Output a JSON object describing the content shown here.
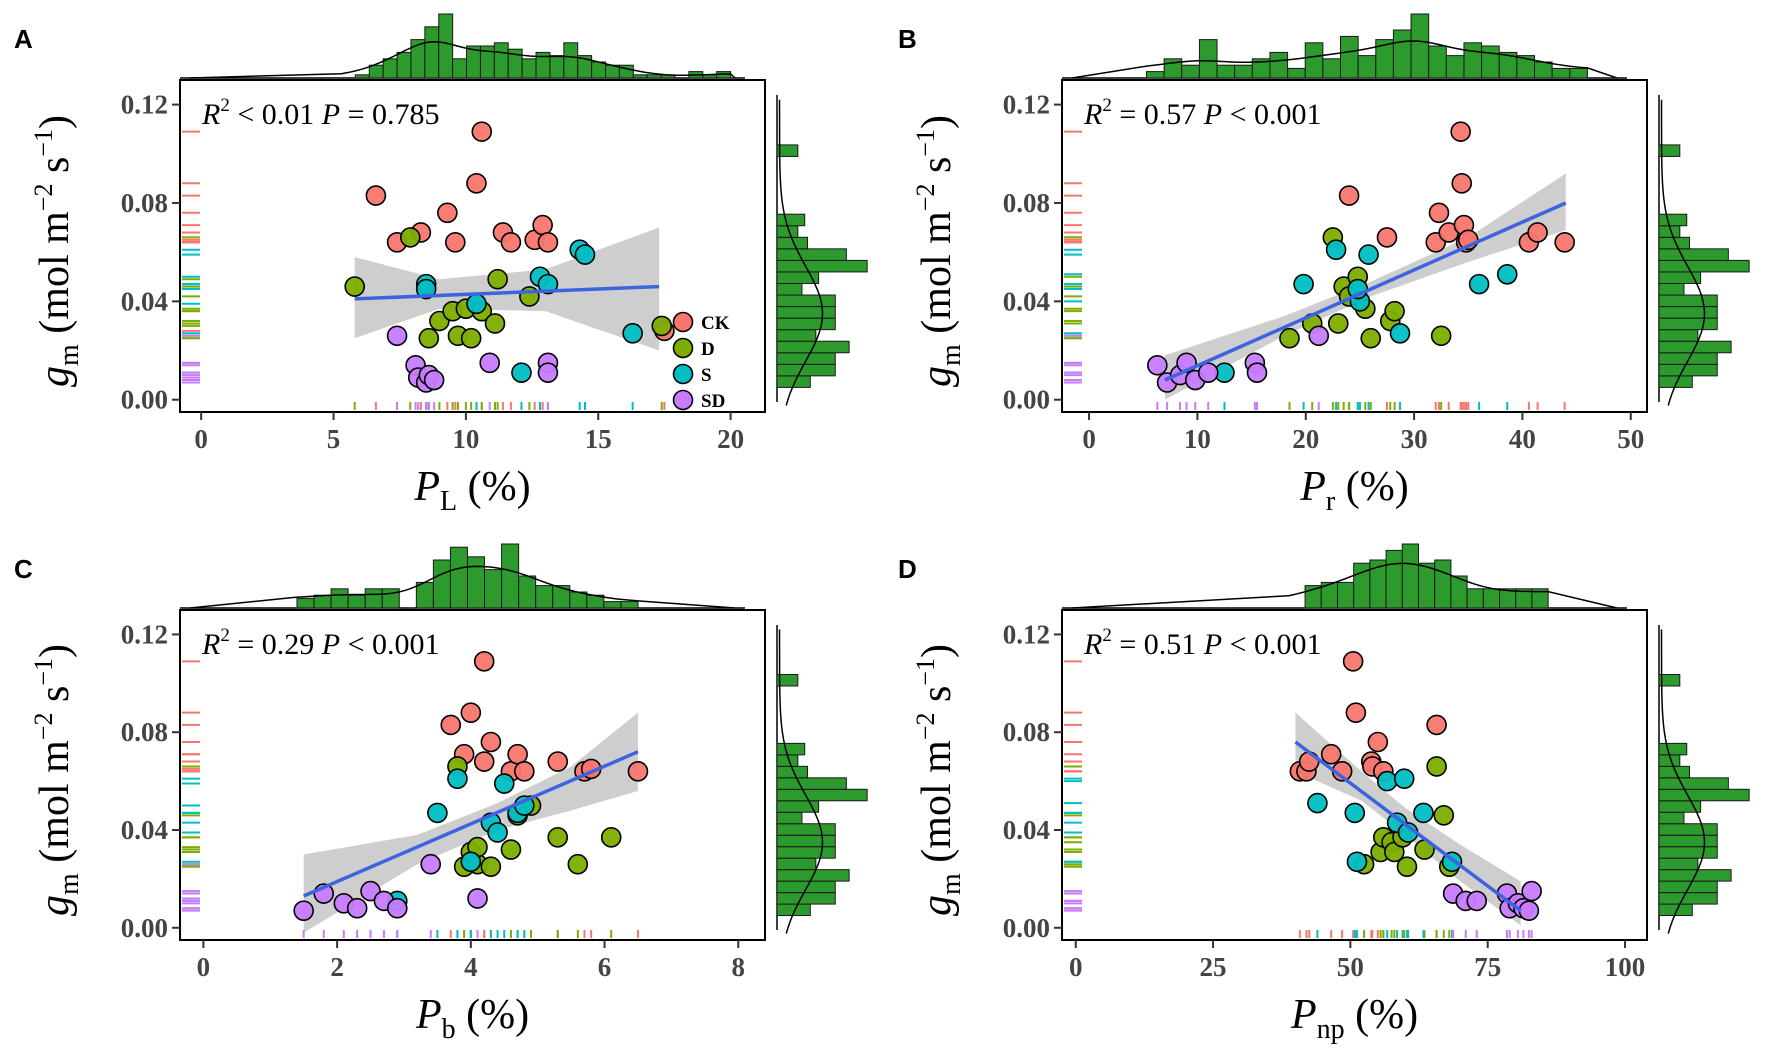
{
  "colors": {
    "CK": "#F8766D",
    "D": "#7CAE00",
    "S": "#00BFC4",
    "SD": "#C77CFF",
    "hist": "#2C9A2C",
    "fit": "#3C64E0",
    "band": "#BEBEBE"
  },
  "y_axis": {
    "symbol": "g",
    "subscript": "m",
    "units": "(mol m",
    "exp1": "−2",
    "mid": " s",
    "exp2": "−1",
    "close": ")",
    "ticks": [
      0,
      0.04,
      0.08,
      0.12
    ],
    "tick_labels": [
      "0.00",
      "0.04",
      "0.08",
      "0.12"
    ],
    "ylim": [
      -0.005,
      0.13
    ]
  },
  "legend": {
    "groups": [
      "CK",
      "D",
      "S",
      "SD"
    ]
  },
  "chart_data": [
    {
      "panel": "A",
      "type": "scatter",
      "xlabel": {
        "symbol": "P",
        "subscript": "L",
        "unit": "(%)"
      },
      "xlim": [
        -0.8,
        21.3
      ],
      "xticks": [
        0,
        5,
        10,
        15,
        20
      ],
      "xtick_labels": [
        "0",
        "5",
        "10",
        "15",
        "20"
      ],
      "stats": {
        "r2": "< 0.01",
        "p": "= 0.785"
      },
      "fit": {
        "x": [
          5.8,
          17.3
        ],
        "y": [
          0.041,
          0.046
        ],
        "band_x": [
          5.8,
          9,
          13,
          17.3
        ],
        "band_lo": [
          0.025,
          0.037,
          0.036,
          0.02
        ],
        "band_hi": [
          0.058,
          0.049,
          0.053,
          0.07
        ]
      },
      "points": [
        [
          "CK",
          6.6,
          0.083
        ],
        [
          "CK",
          7.4,
          0.064
        ],
        [
          "CK",
          8.3,
          0.068
        ],
        [
          "CK",
          9.3,
          0.076
        ],
        [
          "CK",
          9.6,
          0.064
        ],
        [
          "CK",
          10.4,
          0.088
        ],
        [
          "CK",
          10.6,
          0.109
        ],
        [
          "CK",
          11.4,
          0.068
        ],
        [
          "CK",
          11.7,
          0.064
        ],
        [
          "CK",
          12.6,
          0.065
        ],
        [
          "CK",
          12.9,
          0.071
        ],
        [
          "CK",
          13.1,
          0.064
        ],
        [
          "CK",
          17.5,
          0.028
        ],
        [
          "D",
          5.8,
          0.046
        ],
        [
          "D",
          7.9,
          0.066
        ],
        [
          "D",
          8.6,
          0.025
        ],
        [
          "D",
          9.0,
          0.032
        ],
        [
          "D",
          9.5,
          0.036
        ],
        [
          "D",
          9.7,
          0.026
        ],
        [
          "D",
          10.0,
          0.037
        ],
        [
          "D",
          10.2,
          0.025
        ],
        [
          "D",
          10.6,
          0.036
        ],
        [
          "D",
          11.1,
          0.031
        ],
        [
          "D",
          11.2,
          0.049
        ],
        [
          "D",
          12.4,
          0.042
        ],
        [
          "D",
          17.4,
          0.03
        ],
        [
          "S",
          8.5,
          0.047
        ],
        [
          "S",
          8.5,
          0.045
        ],
        [
          "S",
          10.4,
          0.039
        ],
        [
          "S",
          12.1,
          0.011
        ],
        [
          "S",
          12.8,
          0.05
        ],
        [
          "S",
          13.1,
          0.047
        ],
        [
          "S",
          14.3,
          0.061
        ],
        [
          "S",
          14.5,
          0.059
        ],
        [
          "S",
          16.3,
          0.027
        ],
        [
          "SD",
          7.4,
          0.026
        ],
        [
          "SD",
          8.1,
          0.014
        ],
        [
          "SD",
          8.2,
          0.009
        ],
        [
          "SD",
          8.5,
          0.007
        ],
        [
          "SD",
          8.6,
          0.01
        ],
        [
          "SD",
          8.8,
          0.008
        ],
        [
          "SD",
          10.9,
          0.015
        ],
        [
          "SD",
          13.1,
          0.015
        ],
        [
          "SD",
          13.1,
          0.011
        ]
      ],
      "top_hist": {
        "edges": [
          5.3,
          20
        ],
        "heights": [
          0,
          0.05,
          0.2,
          0.3,
          0.4,
          0.6,
          0.8,
          1.0,
          0.3,
          0.5,
          0.5,
          0.55,
          0.45,
          0.3,
          0.4,
          0.35,
          0.55,
          0.35,
          0.25,
          0.2,
          0.2,
          0.05,
          0.05,
          0.05,
          0,
          0.1,
          0.05,
          0.1
        ]
      },
      "right_hist": {
        "heights": [
          0.24,
          0.42,
          0.42,
          0.52,
          0.28,
          0.42,
          0.42,
          0.42,
          0.18,
          0.3,
          0.65,
          0.5,
          0.22,
          0.15,
          0.2,
          0,
          0,
          0,
          0,
          0,
          0.15,
          0,
          0
        ]
      }
    },
    {
      "panel": "B",
      "type": "scatter",
      "xlabel": {
        "symbol": "P",
        "subscript": "r",
        "unit": "(%)"
      },
      "xlim": [
        -2.5,
        51.5
      ],
      "xticks": [
        0,
        10,
        20,
        30,
        40,
        50
      ],
      "xtick_labels": [
        "0",
        "10",
        "20",
        "30",
        "40",
        "50"
      ],
      "stats": {
        "r2": "= 0.57",
        "p": "< 0.001"
      },
      "fit": {
        "x": [
          7,
          44
        ],
        "y": [
          0.008,
          0.08
        ],
        "band_x": [
          7,
          18,
          26,
          35,
          44
        ],
        "band_lo": [
          0.0,
          0.026,
          0.042,
          0.056,
          0.069
        ],
        "band_hi": [
          0.018,
          0.034,
          0.048,
          0.066,
          0.092
        ]
      },
      "points": [
        [
          "CK",
          24.0,
          0.083
        ],
        [
          "CK",
          27.5,
          0.066
        ],
        [
          "CK",
          32.0,
          0.064
        ],
        [
          "CK",
          32.3,
          0.076
        ],
        [
          "CK",
          33.2,
          0.068
        ],
        [
          "CK",
          34.3,
          0.109
        ],
        [
          "CK",
          34.4,
          0.088
        ],
        [
          "CK",
          34.6,
          0.071
        ],
        [
          "CK",
          34.8,
          0.064
        ],
        [
          "CK",
          40.6,
          0.064
        ],
        [
          "CK",
          41.4,
          0.068
        ],
        [
          "CK",
          43.9,
          0.064
        ],
        [
          "CK",
          35.0,
          0.065
        ],
        [
          "D",
          18.5,
          0.025
        ],
        [
          "D",
          20.6,
          0.031
        ],
        [
          "D",
          22.5,
          0.066
        ],
        [
          "D",
          23.0,
          0.031
        ],
        [
          "D",
          23.5,
          0.046
        ],
        [
          "D",
          24.8,
          0.05
        ],
        [
          "D",
          25.5,
          0.037
        ],
        [
          "D",
          26.0,
          0.025
        ],
        [
          "D",
          27.8,
          0.032
        ],
        [
          "D",
          28.2,
          0.036
        ],
        [
          "D",
          32.5,
          0.026
        ],
        [
          "D",
          24.0,
          0.042
        ],
        [
          "S",
          12.5,
          0.011
        ],
        [
          "S",
          19.8,
          0.047
        ],
        [
          "S",
          22.8,
          0.061
        ],
        [
          "S",
          25.0,
          0.04
        ],
        [
          "S",
          25.8,
          0.059
        ],
        [
          "S",
          28.7,
          0.027
        ],
        [
          "S",
          36.0,
          0.047
        ],
        [
          "S",
          38.6,
          0.051
        ],
        [
          "S",
          24.8,
          0.045
        ],
        [
          "SD",
          6.3,
          0.014
        ],
        [
          "SD",
          7.2,
          0.007
        ],
        [
          "SD",
          8.4,
          0.01
        ],
        [
          "SD",
          9.0,
          0.015
        ],
        [
          "SD",
          9.8,
          0.008
        ],
        [
          "SD",
          11.0,
          0.011
        ],
        [
          "SD",
          15.3,
          0.015
        ],
        [
          "SD",
          15.5,
          0.011
        ],
        [
          "SD",
          21.2,
          0.026
        ]
      ],
      "top_hist": {
        "edges": [
          5.3,
          46
        ],
        "heights": [
          0.1,
          0.3,
          0.2,
          0.6,
          0.2,
          0.2,
          0.3,
          0.4,
          0.15,
          0.55,
          0.3,
          0.65,
          0.35,
          0.6,
          0.75,
          1.0,
          0.5,
          0.35,
          0.55,
          0.5,
          0.4,
          0.35,
          0.25,
          0.15,
          0.15
        ]
      },
      "right_hist": {
        "heights": [
          0.24,
          0.42,
          0.42,
          0.52,
          0.28,
          0.42,
          0.42,
          0.42,
          0.18,
          0.3,
          0.65,
          0.5,
          0.22,
          0.15,
          0.2,
          0,
          0,
          0,
          0,
          0,
          0.15,
          0,
          0
        ]
      }
    },
    {
      "panel": "C",
      "type": "scatter",
      "xlabel": {
        "symbol": "P",
        "subscript": "b",
        "unit": "(%)"
      },
      "xlim": [
        -0.35,
        8.4
      ],
      "xticks": [
        0,
        2,
        4,
        6,
        8
      ],
      "xtick_labels": [
        "0",
        "2",
        "4",
        "6",
        "8"
      ],
      "stats": {
        "r2": "= 0.29",
        "p": "< 0.001"
      },
      "fit": {
        "x": [
          1.5,
          6.5
        ],
        "y": [
          0.013,
          0.072
        ],
        "band_x": [
          1.5,
          3.2,
          4.4,
          5.5,
          6.5
        ],
        "band_lo": [
          -0.002,
          0.026,
          0.04,
          0.048,
          0.056
        ],
        "band_hi": [
          0.03,
          0.038,
          0.051,
          0.066,
          0.088
        ]
      },
      "points": [
        [
          "CK",
          3.7,
          0.083
        ],
        [
          "CK",
          4.0,
          0.088
        ],
        [
          "CK",
          4.2,
          0.109
        ],
        [
          "CK",
          4.3,
          0.076
        ],
        [
          "CK",
          4.2,
          0.068
        ],
        [
          "CK",
          4.6,
          0.064
        ],
        [
          "CK",
          4.7,
          0.071
        ],
        [
          "CK",
          4.8,
          0.064
        ],
        [
          "CK",
          5.3,
          0.068
        ],
        [
          "CK",
          5.7,
          0.064
        ],
        [
          "CK",
          5.8,
          0.065
        ],
        [
          "CK",
          6.5,
          0.064
        ],
        [
          "CK",
          3.9,
          0.071
        ],
        [
          "D",
          3.8,
          0.066
        ],
        [
          "D",
          3.9,
          0.025
        ],
        [
          "D",
          4.0,
          0.031
        ],
        [
          "D",
          4.1,
          0.026
        ],
        [
          "D",
          4.1,
          0.033
        ],
        [
          "D",
          4.3,
          0.025
        ],
        [
          "D",
          4.6,
          0.032
        ],
        [
          "D",
          4.7,
          0.046
        ],
        [
          "D",
          4.9,
          0.05
        ],
        [
          "D",
          5.3,
          0.037
        ],
        [
          "D",
          5.6,
          0.026
        ],
        [
          "D",
          6.1,
          0.037
        ],
        [
          "S",
          2.9,
          0.011
        ],
        [
          "S",
          3.5,
          0.047
        ],
        [
          "S",
          3.8,
          0.061
        ],
        [
          "S",
          4.0,
          0.027
        ],
        [
          "S",
          4.3,
          0.043
        ],
        [
          "S",
          4.4,
          0.039
        ],
        [
          "S",
          4.5,
          0.059
        ],
        [
          "S",
          4.7,
          0.047
        ],
        [
          "S",
          4.8,
          0.05
        ],
        [
          "SD",
          1.5,
          0.007
        ],
        [
          "SD",
          1.8,
          0.014
        ],
        [
          "SD",
          2.1,
          0.01
        ],
        [
          "SD",
          2.3,
          0.008
        ],
        [
          "SD",
          2.5,
          0.015
        ],
        [
          "SD",
          2.7,
          0.011
        ],
        [
          "SD",
          2.9,
          0.008
        ],
        [
          "SD",
          3.4,
          0.026
        ],
        [
          "SD",
          4.1,
          0.012
        ]
      ],
      "top_hist": {
        "edges": [
          1.4,
          6.5
        ],
        "heights": [
          0.15,
          0.2,
          0.3,
          0.2,
          0.3,
          0.3,
          0,
          0.4,
          0.75,
          0.95,
          0.8,
          0.6,
          1.0,
          0.5,
          0.35,
          0.35,
          0.25,
          0.2,
          0.1,
          0.1
        ]
      },
      "right_hist": {
        "heights": [
          0.24,
          0.42,
          0.42,
          0.52,
          0.28,
          0.42,
          0.42,
          0.42,
          0.18,
          0.3,
          0.65,
          0.5,
          0.22,
          0.15,
          0.2,
          0,
          0,
          0,
          0,
          0,
          0.15,
          0,
          0
        ]
      }
    },
    {
      "panel": "D",
      "type": "scatter",
      "xlabel": {
        "symbol": "P",
        "subscript": "np",
        "unit": "(%)"
      },
      "xlim": [
        -2.5,
        104
      ],
      "xticks": [
        0,
        25,
        50,
        75,
        100
      ],
      "xtick_labels": [
        "0",
        "25",
        "50",
        "75",
        "100"
      ],
      "stats": {
        "r2": "= 0.51",
        "p": "< 0.001"
      },
      "fit": {
        "x": [
          40,
          81
        ],
        "y": [
          0.076,
          0.007
        ],
        "band_x": [
          40,
          52,
          60,
          70,
          81
        ],
        "band_lo": [
          0.064,
          0.052,
          0.038,
          0.019,
          0.001
        ],
        "band_hi": [
          0.088,
          0.064,
          0.049,
          0.034,
          0.019
        ]
      },
      "points": [
        [
          "CK",
          40.8,
          0.064
        ],
        [
          "CK",
          42.0,
          0.064
        ],
        [
          "CK",
          42.5,
          0.068
        ],
        [
          "CK",
          46.5,
          0.071
        ],
        [
          "CK",
          48.5,
          0.064
        ],
        [
          "CK",
          50.5,
          0.109
        ],
        [
          "CK",
          51.0,
          0.088
        ],
        [
          "CK",
          53.8,
          0.068
        ],
        [
          "CK",
          54.0,
          0.066
        ],
        [
          "CK",
          55.0,
          0.076
        ],
        [
          "CK",
          56.0,
          0.064
        ],
        [
          "CK",
          65.7,
          0.083
        ],
        [
          "D",
          52.5,
          0.026
        ],
        [
          "D",
          55.5,
          0.031
        ],
        [
          "D",
          56.0,
          0.037
        ],
        [
          "D",
          57.5,
          0.035
        ],
        [
          "D",
          58.0,
          0.031
        ],
        [
          "D",
          59.5,
          0.037
        ],
        [
          "D",
          60.3,
          0.025
        ],
        [
          "D",
          63.5,
          0.032
        ],
        [
          "D",
          65.7,
          0.066
        ],
        [
          "D",
          67.0,
          0.046
        ],
        [
          "D",
          68.0,
          0.025
        ],
        [
          "S",
          44.0,
          0.051
        ],
        [
          "S",
          50.8,
          0.047
        ],
        [
          "S",
          51.2,
          0.027
        ],
        [
          "S",
          56.7,
          0.06
        ],
        [
          "S",
          58.5,
          0.043
        ],
        [
          "S",
          59.8,
          0.061
        ],
        [
          "S",
          60.5,
          0.039
        ],
        [
          "S",
          63.3,
          0.047
        ],
        [
          "S",
          68.5,
          0.027
        ],
        [
          "SD",
          68.7,
          0.014
        ],
        [
          "SD",
          71.0,
          0.011
        ],
        [
          "SD",
          73.0,
          0.011
        ],
        [
          "SD",
          78.5,
          0.014
        ],
        [
          "SD",
          79.0,
          0.008
        ],
        [
          "SD",
          80.5,
          0.01
        ],
        [
          "SD",
          81.5,
          0.008
        ],
        [
          "SD",
          82.5,
          0.007
        ],
        [
          "SD",
          83.0,
          0.015
        ]
      ],
      "top_hist": {
        "edges": [
          38.8,
          86
        ],
        "heights": [
          0,
          0.35,
          0.4,
          0.4,
          0.7,
          0.75,
          0.9,
          1.0,
          0.7,
          0.75,
          0.5,
          0.3,
          0.3,
          0.3,
          0.3,
          0.3
        ]
      },
      "right_hist": {
        "heights": [
          0.24,
          0.42,
          0.42,
          0.52,
          0.28,
          0.42,
          0.42,
          0.42,
          0.18,
          0.3,
          0.65,
          0.5,
          0.22,
          0.15,
          0.2,
          0,
          0,
          0,
          0,
          0,
          0.15,
          0,
          0
        ]
      }
    }
  ]
}
